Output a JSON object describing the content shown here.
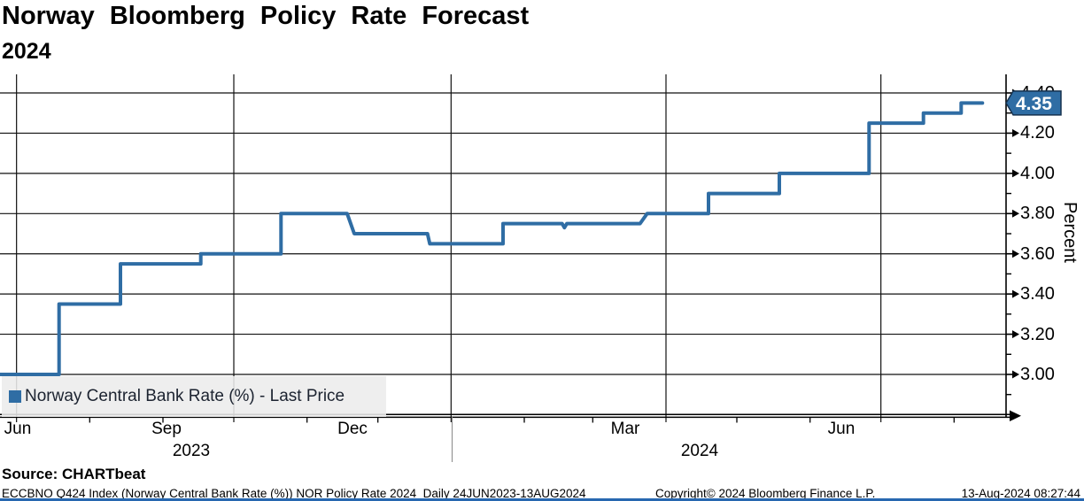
{
  "header": {
    "title": "Norway Bloomberg Policy Rate Forecast",
    "subtitle": "2024"
  },
  "legend": {
    "marker_color": "#2F6DA4",
    "label": "Norway Central Bank Rate (%) - Last Price"
  },
  "last_price_tag": {
    "value": "4.35",
    "bg_color": "#2F6DA4",
    "border_color": "#16324F",
    "text_color": "#FFFFFF"
  },
  "chart_data": {
    "type": "line",
    "title": "Norway Bloomberg Policy Rate Forecast 2024",
    "ylabel": "Percent",
    "xlabel": "",
    "grid": "both",
    "legend_position": "bottom-left",
    "ylim": [
      2.79,
      4.49
    ],
    "x_domain": [
      "2023-06-24",
      "2024-08-23"
    ],
    "last_price": 4.35,
    "line_color": "#2F6DA4",
    "series": [
      {
        "name": "Norway Central Bank Rate (%) - Last Price",
        "color": "#2F6DA4",
        "points": [
          [
            "2023-06-24",
            3.0
          ],
          [
            "2023-07-19",
            3.0
          ],
          [
            "2023-07-19",
            3.35
          ],
          [
            "2023-08-14",
            3.35
          ],
          [
            "2023-08-14",
            3.55
          ],
          [
            "2023-09-17",
            3.55
          ],
          [
            "2023-09-17",
            3.6
          ],
          [
            "2023-10-21",
            3.6
          ],
          [
            "2023-10-21",
            3.8
          ],
          [
            "2023-11-18",
            3.8
          ],
          [
            "2023-11-21",
            3.7
          ],
          [
            "2023-12-22",
            3.7
          ],
          [
            "2023-12-23",
            3.65
          ],
          [
            "2024-01-23",
            3.65
          ],
          [
            "2024-01-23",
            3.75
          ],
          [
            "2024-02-17",
            3.75
          ],
          [
            "2024-02-18",
            3.73
          ],
          [
            "2024-02-19",
            3.75
          ],
          [
            "2024-03-21",
            3.75
          ],
          [
            "2024-03-24",
            3.8
          ],
          [
            "2024-04-19",
            3.8
          ],
          [
            "2024-04-19",
            3.9
          ],
          [
            "2024-05-19",
            3.9
          ],
          [
            "2024-05-19",
            4.0
          ],
          [
            "2024-06-26",
            4.0
          ],
          [
            "2024-06-26",
            4.25
          ],
          [
            "2024-07-19",
            4.25
          ],
          [
            "2024-07-19",
            4.3
          ],
          [
            "2024-08-04",
            4.3
          ],
          [
            "2024-08-04",
            4.35
          ],
          [
            "2024-08-13",
            4.35
          ]
        ]
      }
    ],
    "y_ticks_major": [
      {
        "v": 3.0,
        "label": "3.00"
      },
      {
        "v": 3.2,
        "label": "3.20"
      },
      {
        "v": 3.4,
        "label": "3.40"
      },
      {
        "v": 3.6,
        "label": "3.60"
      },
      {
        "v": 3.8,
        "label": "3.80"
      },
      {
        "v": 4.0,
        "label": "4.00"
      },
      {
        "v": 4.2,
        "label": "4.20"
      },
      {
        "v": 4.4,
        "label": "4.40"
      }
    ],
    "y_ticks_minor": [
      2.9,
      3.1,
      3.3,
      3.5,
      3.7,
      3.9,
      4.1,
      4.3
    ],
    "x_ticks_major": [
      "2023-07-01",
      "2023-10-01",
      "2024-01-01",
      "2024-04-01",
      "2024-07-01"
    ],
    "x_ticks_minor": [
      "2023-08-01",
      "2023-09-01",
      "2023-11-01",
      "2023-12-01",
      "2024-02-01",
      "2024-03-01",
      "2024-05-01",
      "2024-06-01",
      "2024-08-01"
    ],
    "x_labels": [
      {
        "text": "Jun",
        "x": 20
      },
      {
        "text": "Sep",
        "x": 188
      },
      {
        "text": "Dec",
        "x": 398
      },
      {
        "text": "Mar",
        "x": 706
      },
      {
        "text": "Jun",
        "x": 950
      }
    ],
    "year_labels": [
      {
        "text": "2023",
        "x": 216
      },
      {
        "text": "2024",
        "x": 790
      }
    ]
  },
  "footer": {
    "source": "Source: CHARTbeat",
    "info_left": "ECCBNO Q424 Index (Norway Central Bank Rate (%)) NOR Policy Rate 2024  Daily 24JUN2023-13AUG2024",
    "copyright": "Copyright© 2024 Bloomberg Finance L.P.",
    "timestamp": "13-Aug-2024 08:27:44"
  }
}
